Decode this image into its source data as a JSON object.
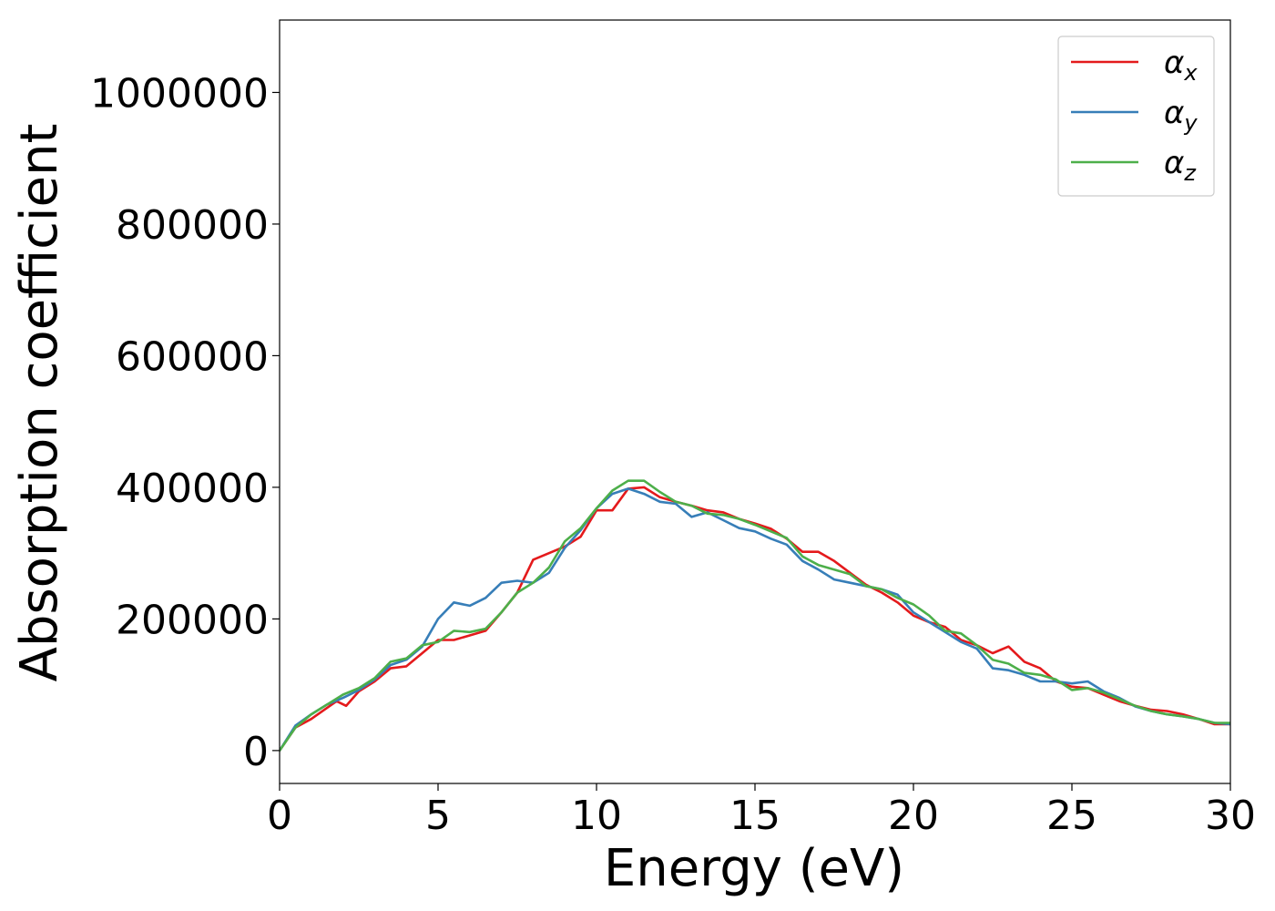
{
  "chart_data": {
    "type": "line",
    "title": "",
    "xlabel": "Energy (eV)",
    "ylabel": "Absorption coefficient",
    "xlim": [
      0,
      30
    ],
    "ylim": [
      -50000,
      1110000
    ],
    "xticks": [
      "0",
      "5",
      "10",
      "15",
      "20",
      "25",
      "30"
    ],
    "yticks": [
      "0",
      "200000",
      "400000",
      "600000",
      "800000",
      "1000000"
    ],
    "grid": false,
    "legend_position": "top-right",
    "series": [
      {
        "name": "α",
        "subscript": "x",
        "color": "#e41a1c",
        "points": [
          [
            0,
            0
          ],
          [
            0.5,
            35000
          ],
          [
            1,
            48000
          ],
          [
            1.5,
            65000
          ],
          [
            1.8,
            75000
          ],
          [
            2.1,
            68000
          ],
          [
            2.5,
            90000
          ],
          [
            3,
            105000
          ],
          [
            3.5,
            125000
          ],
          [
            4,
            128000
          ],
          [
            4.5,
            148000
          ],
          [
            5,
            168000
          ],
          [
            5.5,
            168000
          ],
          [
            6,
            175000
          ],
          [
            6.5,
            182000
          ],
          [
            7,
            210000
          ],
          [
            7.5,
            240000
          ],
          [
            8,
            290000
          ],
          [
            8.5,
            300000
          ],
          [
            9,
            310000
          ],
          [
            9.5,
            325000
          ],
          [
            10,
            365000
          ],
          [
            10.5,
            365000
          ],
          [
            11,
            398000
          ],
          [
            11.5,
            400000
          ],
          [
            12,
            385000
          ],
          [
            12.5,
            378000
          ],
          [
            13,
            372000
          ],
          [
            13.5,
            365000
          ],
          [
            14,
            362000
          ],
          [
            14.5,
            352000
          ],
          [
            15,
            345000
          ],
          [
            15.5,
            337000
          ],
          [
            16,
            322000
          ],
          [
            16.5,
            302000
          ],
          [
            17,
            302000
          ],
          [
            17.5,
            288000
          ],
          [
            18,
            270000
          ],
          [
            18.5,
            252000
          ],
          [
            19,
            240000
          ],
          [
            19.5,
            225000
          ],
          [
            20,
            205000
          ],
          [
            20.5,
            195000
          ],
          [
            21,
            188000
          ],
          [
            21.5,
            168000
          ],
          [
            22,
            160000
          ],
          [
            22.5,
            148000
          ],
          [
            23,
            158000
          ],
          [
            23.5,
            135000
          ],
          [
            24,
            125000
          ],
          [
            24.5,
            105000
          ],
          [
            25,
            97000
          ],
          [
            25.5,
            95000
          ],
          [
            26,
            85000
          ],
          [
            26.5,
            75000
          ],
          [
            27,
            68000
          ],
          [
            27.5,
            62000
          ],
          [
            28,
            60000
          ],
          [
            28.5,
            55000
          ],
          [
            29,
            48000
          ],
          [
            29.5,
            40000
          ],
          [
            30,
            40000
          ]
        ]
      },
      {
        "name": "α",
        "subscript": "y",
        "color": "#377eb8",
        "points": [
          [
            0,
            0
          ],
          [
            0.5,
            38000
          ],
          [
            1,
            55000
          ],
          [
            1.5,
            70000
          ],
          [
            2,
            80000
          ],
          [
            2.5,
            92000
          ],
          [
            3,
            108000
          ],
          [
            3.5,
            130000
          ],
          [
            4,
            138000
          ],
          [
            4.5,
            158000
          ],
          [
            5,
            200000
          ],
          [
            5.5,
            225000
          ],
          [
            6,
            220000
          ],
          [
            6.5,
            232000
          ],
          [
            7,
            255000
          ],
          [
            7.5,
            258000
          ],
          [
            8,
            255000
          ],
          [
            8.5,
            270000
          ],
          [
            9,
            308000
          ],
          [
            9.5,
            335000
          ],
          [
            10,
            368000
          ],
          [
            10.5,
            390000
          ],
          [
            11,
            398000
          ],
          [
            11.5,
            390000
          ],
          [
            12,
            378000
          ],
          [
            12.5,
            375000
          ],
          [
            13,
            355000
          ],
          [
            13.5,
            362000
          ],
          [
            14,
            350000
          ],
          [
            14.5,
            338000
          ],
          [
            15,
            333000
          ],
          [
            15.5,
            322000
          ],
          [
            16,
            313000
          ],
          [
            16.5,
            288000
          ],
          [
            17,
            275000
          ],
          [
            17.5,
            260000
          ],
          [
            18,
            255000
          ],
          [
            18.5,
            250000
          ],
          [
            19,
            245000
          ],
          [
            19.5,
            237000
          ],
          [
            20,
            210000
          ],
          [
            20.5,
            195000
          ],
          [
            21,
            180000
          ],
          [
            21.5,
            165000
          ],
          [
            22,
            155000
          ],
          [
            22.5,
            125000
          ],
          [
            23,
            122000
          ],
          [
            23.5,
            115000
          ],
          [
            24,
            105000
          ],
          [
            24.5,
            105000
          ],
          [
            25,
            102000
          ],
          [
            25.5,
            105000
          ],
          [
            26,
            90000
          ],
          [
            26.5,
            80000
          ],
          [
            27,
            67000
          ],
          [
            27.5,
            60000
          ],
          [
            28,
            55000
          ],
          [
            28.5,
            52000
          ],
          [
            29,
            48000
          ],
          [
            29.5,
            42000
          ],
          [
            30,
            40000
          ]
        ]
      },
      {
        "name": "α",
        "subscript": "z",
        "color": "#4daf4a",
        "points": [
          [
            0,
            0
          ],
          [
            0.5,
            35000
          ],
          [
            1,
            55000
          ],
          [
            1.5,
            70000
          ],
          [
            2,
            85000
          ],
          [
            2.5,
            95000
          ],
          [
            3,
            110000
          ],
          [
            3.5,
            135000
          ],
          [
            4,
            140000
          ],
          [
            4.5,
            160000
          ],
          [
            5,
            165000
          ],
          [
            5.5,
            182000
          ],
          [
            6,
            180000
          ],
          [
            6.5,
            185000
          ],
          [
            7,
            210000
          ],
          [
            7.5,
            240000
          ],
          [
            8,
            255000
          ],
          [
            8.5,
            278000
          ],
          [
            9,
            318000
          ],
          [
            9.5,
            338000
          ],
          [
            10,
            368000
          ],
          [
            10.5,
            395000
          ],
          [
            11,
            410000
          ],
          [
            11.5,
            410000
          ],
          [
            12,
            393000
          ],
          [
            12.5,
            378000
          ],
          [
            13,
            372000
          ],
          [
            13.5,
            360000
          ],
          [
            14,
            358000
          ],
          [
            14.5,
            352000
          ],
          [
            15,
            343000
          ],
          [
            15.5,
            333000
          ],
          [
            16,
            323000
          ],
          [
            16.5,
            295000
          ],
          [
            17,
            282000
          ],
          [
            17.5,
            275000
          ],
          [
            18,
            268000
          ],
          [
            18.5,
            250000
          ],
          [
            19,
            245000
          ],
          [
            19.5,
            232000
          ],
          [
            20,
            222000
          ],
          [
            20.5,
            205000
          ],
          [
            21,
            182000
          ],
          [
            21.5,
            178000
          ],
          [
            22,
            160000
          ],
          [
            22.5,
            138000
          ],
          [
            23,
            132000
          ],
          [
            23.5,
            118000
          ],
          [
            24,
            115000
          ],
          [
            24.5,
            108000
          ],
          [
            25,
            92000
          ],
          [
            25.5,
            95000
          ],
          [
            26,
            88000
          ],
          [
            26.5,
            78000
          ],
          [
            27,
            68000
          ],
          [
            27.5,
            60000
          ],
          [
            28,
            55000
          ],
          [
            28.5,
            52000
          ],
          [
            29,
            48000
          ],
          [
            29.5,
            42000
          ],
          [
            30,
            42000
          ]
        ]
      }
    ]
  }
}
